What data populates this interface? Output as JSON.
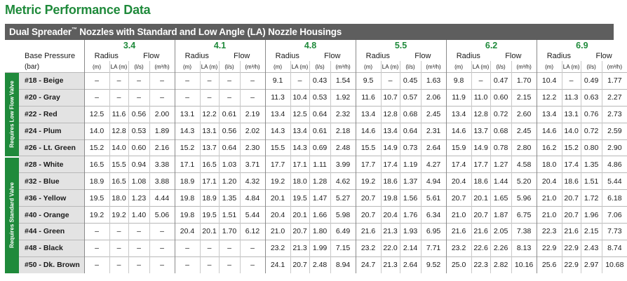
{
  "title": "Metric Performance Data",
  "table_title": "Dual Spreader",
  "table_title_tm": "™",
  "table_title_rest": " Nozzles with Standard and Low Angle (LA) Nozzle Housings",
  "base_pressure_label": "Base Pressure",
  "bar_label": "(bar)",
  "radius_label": "Radius",
  "flow_label": "Flow",
  "unit_labels": [
    "(m)",
    "LA (m)",
    "(l/s)",
    "(m³/h)"
  ],
  "pressures": [
    "3.4",
    "4.1",
    "4.8",
    "5.5",
    "6.2",
    "6.9"
  ],
  "group_labels": [
    "Requires Low Flow Valve",
    "Requires Standard Valve"
  ],
  "rows": [
    {
      "name": "#18 - Beige",
      "vals": [
        "–",
        "–",
        "–",
        "–",
        "–",
        "–",
        "–",
        "–",
        "9.1",
        "–",
        "0.43",
        "1.54",
        "9.5",
        "–",
        "0.45",
        "1.63",
        "9.8",
        "–",
        "0.47",
        "1.70",
        "10.4",
        "–",
        "0.49",
        "1.77"
      ]
    },
    {
      "name": "#20 - Gray",
      "vals": [
        "–",
        "–",
        "–",
        "–",
        "–",
        "–",
        "–",
        "–",
        "11.3",
        "10.4",
        "0.53",
        "1.92",
        "11.6",
        "10.7",
        "0.57",
        "2.06",
        "11.9",
        "11.0",
        "0.60",
        "2.15",
        "12.2",
        "11.3",
        "0.63",
        "2.27"
      ]
    },
    {
      "name": "#22 - Red",
      "vals": [
        "12.5",
        "11.6",
        "0.56",
        "2.00",
        "13.1",
        "12.2",
        "0.61",
        "2.19",
        "13.4",
        "12.5",
        "0.64",
        "2.32",
        "13.4",
        "12.8",
        "0.68",
        "2.45",
        "13.4",
        "12.8",
        "0.72",
        "2.60",
        "13.4",
        "13.1",
        "0.76",
        "2.73"
      ]
    },
    {
      "name": "#24 - Plum",
      "vals": [
        "14.0",
        "12.8",
        "0.53",
        "1.89",
        "14.3",
        "13.1",
        "0.56",
        "2.02",
        "14.3",
        "13.4",
        "0.61",
        "2.18",
        "14.6",
        "13.4",
        "0.64",
        "2.31",
        "14.6",
        "13.7",
        "0.68",
        "2.45",
        "14.6",
        "14.0",
        "0.72",
        "2.59"
      ]
    },
    {
      "name": "#26 - Lt. Green",
      "vals": [
        "15.2",
        "14.0",
        "0.60",
        "2.16",
        "15.2",
        "13.7",
        "0.64",
        "2.30",
        "15.5",
        "14.3",
        "0.69",
        "2.48",
        "15.5",
        "14.9",
        "0.73",
        "2.64",
        "15.9",
        "14.9",
        "0.78",
        "2.80",
        "16.2",
        "15.2",
        "0.80",
        "2.90"
      ]
    },
    {
      "name": "#28 - White",
      "vals": [
        "16.5",
        "15.5",
        "0.94",
        "3.38",
        "17.1",
        "16.5",
        "1.03",
        "3.71",
        "17.7",
        "17.1",
        "1.11",
        "3.99",
        "17.7",
        "17.4",
        "1.19",
        "4.27",
        "17.4",
        "17.7",
        "1.27",
        "4.58",
        "18.0",
        "17.4",
        "1.35",
        "4.86"
      ]
    },
    {
      "name": "#32 - Blue",
      "vals": [
        "18.9",
        "16.5",
        "1.08",
        "3.88",
        "18.9",
        "17.1",
        "1.20",
        "4.32",
        "19.2",
        "18.0",
        "1.28",
        "4.62",
        "19.2",
        "18.6",
        "1.37",
        "4.94",
        "20.4",
        "18.6",
        "1.44",
        "5.20",
        "20.4",
        "18.6",
        "1.51",
        "5.44"
      ]
    },
    {
      "name": "#36 - Yellow",
      "vals": [
        "19.5",
        "18.0",
        "1.23",
        "4.44",
        "19.8",
        "18.9",
        "1.35",
        "4.84",
        "20.1",
        "19.5",
        "1.47",
        "5.27",
        "20.7",
        "19.8",
        "1.56",
        "5.61",
        "20.7",
        "20.1",
        "1.65",
        "5.96",
        "21.0",
        "20.7",
        "1.72",
        "6.18"
      ]
    },
    {
      "name": "#40 - Orange",
      "vals": [
        "19.2",
        "19.2",
        "1.40",
        "5.06",
        "19.8",
        "19.5",
        "1.51",
        "5.44",
        "20.4",
        "20.1",
        "1.66",
        "5.98",
        "20.7",
        "20.4",
        "1.76",
        "6.34",
        "21.0",
        "20.7",
        "1.87",
        "6.75",
        "21.0",
        "20.7",
        "1.96",
        "7.06"
      ]
    },
    {
      "name": "#44 - Green",
      "vals": [
        "–",
        "–",
        "–",
        "–",
        "20.4",
        "20.1",
        "1.70",
        "6.12",
        "21.0",
        "20.7",
        "1.80",
        "6.49",
        "21.6",
        "21.3",
        "1.93",
        "6.95",
        "21.6",
        "21.6",
        "2.05",
        "7.38",
        "22.3",
        "21.6",
        "2.15",
        "7.73"
      ]
    },
    {
      "name": "#48 - Black",
      "vals": [
        "–",
        "–",
        "–",
        "–",
        "–",
        "–",
        "–",
        "–",
        "23.2",
        "21.3",
        "1.99",
        "7.15",
        "23.2",
        "22.0",
        "2.14",
        "7.71",
        "23.2",
        "22.6",
        "2.26",
        "8.13",
        "22.9",
        "22.9",
        "2.43",
        "8.74"
      ]
    },
    {
      "name": "#50 - Dk. Brown",
      "vals": [
        "–",
        "–",
        "–",
        "–",
        "–",
        "–",
        "–",
        "–",
        "24.1",
        "20.7",
        "2.48",
        "8.94",
        "24.7",
        "21.3",
        "2.64",
        "9.52",
        "25.0",
        "22.3",
        "2.82",
        "10.16",
        "25.6",
        "22.9",
        "2.97",
        "10.68"
      ]
    }
  ],
  "colors": {
    "brand_green": "#1f8a3b",
    "header_gray": "#5e5e5e",
    "name_cell_bg": "#e3e3e3"
  }
}
